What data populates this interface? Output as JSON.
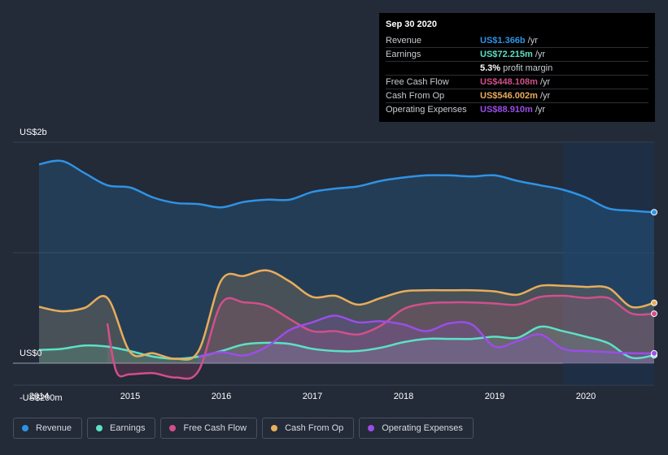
{
  "tooltip": {
    "date": "Sep 30 2020",
    "rows": [
      {
        "label": "Revenue",
        "value": "US$1.366b",
        "unit": "/yr",
        "color": "#2e93e5"
      },
      {
        "label": "Earnings",
        "value": "US$72.215m",
        "unit": "/yr",
        "color": "#5ce1c6"
      },
      {
        "label": "",
        "value": "5.3%",
        "unit": "profit margin",
        "color": "#ffffff"
      },
      {
        "label": "Free Cash Flow",
        "value": "US$448.108m",
        "unit": "/yr",
        "color": "#d24f8a"
      },
      {
        "label": "Cash From Op",
        "value": "US$546.002m",
        "unit": "/yr",
        "color": "#e8ad5c"
      },
      {
        "label": "Operating Expenses",
        "value": "US$88.910m",
        "unit": "/yr",
        "color": "#9b4de8"
      }
    ]
  },
  "legend": [
    {
      "label": "Revenue",
      "color": "#2e93e5"
    },
    {
      "label": "Earnings",
      "color": "#5ce1c6"
    },
    {
      "label": "Free Cash Flow",
      "color": "#d24f8a"
    },
    {
      "label": "Cash From Op",
      "color": "#e8ad5c"
    },
    {
      "label": "Operating Expenses",
      "color": "#9b4de8"
    }
  ],
  "chart_data": {
    "type": "area",
    "y_tick_labels": [
      "US$2b",
      "US$0",
      "-US$200m"
    ],
    "ylim": [
      -200,
      2000
    ],
    "xlim": [
      2014.0,
      2020.75
    ],
    "x_tick_labels": [
      "2014",
      "2015",
      "2016",
      "2017",
      "2018",
      "2019",
      "2020"
    ],
    "x_ticks": [
      2014,
      2015,
      2016,
      2017,
      2018,
      2019,
      2020
    ],
    "grid": true,
    "units": "US$m",
    "series": [
      {
        "name": "Revenue",
        "color": "#2e93e5",
        "x": [
          2014.0,
          2014.25,
          2014.5,
          2014.75,
          2015.0,
          2015.25,
          2015.5,
          2015.75,
          2016.0,
          2016.25,
          2016.5,
          2016.75,
          2017.0,
          2017.25,
          2017.5,
          2017.75,
          2018.0,
          2018.25,
          2018.5,
          2018.75,
          2019.0,
          2019.25,
          2019.5,
          2019.75,
          2020.0,
          2020.25,
          2020.5,
          2020.75
        ],
        "values": [
          1800,
          1830,
          1720,
          1610,
          1590,
          1500,
          1450,
          1440,
          1410,
          1460,
          1480,
          1480,
          1550,
          1580,
          1600,
          1650,
          1680,
          1700,
          1700,
          1690,
          1700,
          1650,
          1610,
          1570,
          1500,
          1400,
          1380,
          1366
        ]
      },
      {
        "name": "Earnings",
        "color": "#5ce1c6",
        "x": [
          2014.0,
          2014.25,
          2014.5,
          2014.75,
          2015.0,
          2015.25,
          2015.5,
          2015.75,
          2016.0,
          2016.25,
          2016.5,
          2016.75,
          2017.0,
          2017.25,
          2017.5,
          2017.75,
          2018.0,
          2018.25,
          2018.5,
          2018.75,
          2019.0,
          2019.25,
          2019.5,
          2019.75,
          2020.0,
          2020.25,
          2020.5,
          2020.75
        ],
        "values": [
          120,
          130,
          160,
          150,
          110,
          60,
          40,
          60,
          110,
          170,
          185,
          175,
          130,
          110,
          110,
          140,
          190,
          220,
          220,
          220,
          240,
          230,
          330,
          290,
          240,
          180,
          50,
          72
        ]
      },
      {
        "name": "Free Cash Flow",
        "color": "#d24f8a",
        "x": [
          2014.75,
          2014.85,
          2015.0,
          2015.25,
          2015.5,
          2015.75,
          2016.0,
          2016.25,
          2016.5,
          2016.75,
          2017.0,
          2017.25,
          2017.5,
          2017.75,
          2018.0,
          2018.25,
          2018.5,
          2018.75,
          2019.0,
          2019.25,
          2019.5,
          2019.75,
          2020.0,
          2020.25,
          2020.5,
          2020.75
        ],
        "values": [
          360,
          -80,
          -100,
          -90,
          -130,
          -70,
          540,
          550,
          520,
          400,
          290,
          290,
          260,
          340,
          490,
          540,
          550,
          550,
          540,
          530,
          600,
          610,
          590,
          590,
          450,
          448
        ]
      },
      {
        "name": "Cash From Op",
        "color": "#e8ad5c",
        "x": [
          2014.0,
          2014.25,
          2014.5,
          2014.75,
          2015.0,
          2015.25,
          2015.5,
          2015.75,
          2016.0,
          2016.25,
          2016.5,
          2016.75,
          2017.0,
          2017.25,
          2017.5,
          2017.75,
          2018.0,
          2018.25,
          2018.5,
          2018.75,
          2019.0,
          2019.25,
          2019.5,
          2019.75,
          2020.0,
          2020.25,
          2020.5,
          2020.75
        ],
        "values": [
          510,
          470,
          500,
          590,
          100,
          90,
          40,
          110,
          750,
          790,
          840,
          740,
          600,
          610,
          530,
          590,
          650,
          660,
          660,
          660,
          650,
          620,
          700,
          700,
          690,
          680,
          510,
          546
        ]
      },
      {
        "name": "Operating Expenses",
        "color": "#9b4de8",
        "x": [
          2015.75,
          2016.0,
          2016.25,
          2016.5,
          2016.75,
          2017.0,
          2017.25,
          2017.5,
          2017.75,
          2018.0,
          2018.25,
          2018.5,
          2018.75,
          2019.0,
          2019.25,
          2019.5,
          2019.75,
          2020.0,
          2020.25,
          2020.5,
          2020.75
        ],
        "values": [
          60,
          100,
          70,
          150,
          300,
          370,
          430,
          370,
          380,
          350,
          290,
          360,
          350,
          150,
          200,
          260,
          130,
          110,
          100,
          90,
          89
        ]
      }
    ]
  }
}
